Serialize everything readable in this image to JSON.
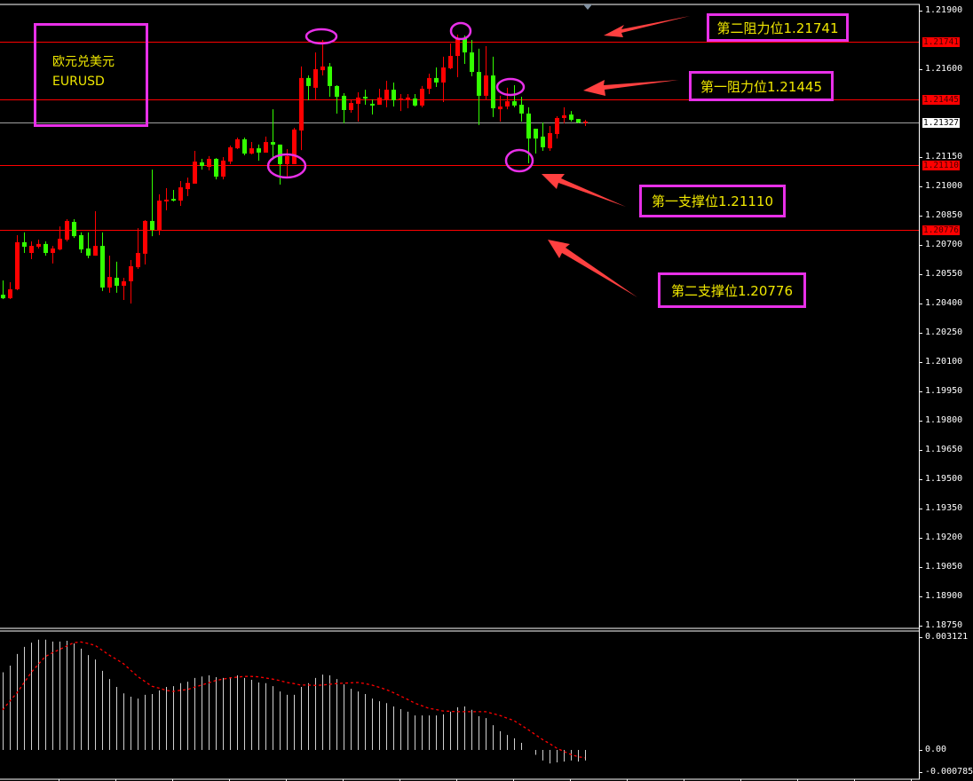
{
  "symbol": {
    "name_cn": "欧元兑美元",
    "name": "EURUSD"
  },
  "annotations": {
    "resistance2": "第二阻力位1.21741",
    "resistance1": "第一阻力位1.21445",
    "support1": "第一支撑位1.21110",
    "support2": "第二支撑位1.20776"
  },
  "colors": {
    "background": "#000000",
    "bull_candle": "#ff0000",
    "bear_candle": "#33ff00",
    "level_line": "#ff0000",
    "bid_line": "#a0a0a0",
    "annotation_box": "#e830e8",
    "annotation_text": "#f0e800",
    "arrow": "#ff4040",
    "macd_hist": "#d0d0d0",
    "macd_signal": "#ff0000"
  },
  "chart_data": [
    {
      "type": "candlestick",
      "title": "",
      "ylim": [
        1.1875,
        1.2195
      ],
      "y_ticks": [
        "1.21900",
        "1.21600",
        "1.21150",
        "1.21000",
        "1.20850",
        "1.20700",
        "1.20550",
        "1.20400",
        "1.20250",
        "1.20100",
        "1.19950",
        "1.19800",
        "1.19650",
        "1.19500",
        "1.19350",
        "1.19200",
        "1.19050",
        "1.18900",
        "1.18750"
      ],
      "grid": false,
      "horizontal_levels": [
        {
          "price": "1.21741",
          "color": "#ff0000"
        },
        {
          "price": "1.21445",
          "color": "#ff0000"
        },
        {
          "price": "1.21327",
          "color": "#a0a0a0",
          "kind": "bid"
        },
        {
          "price": "1.21110",
          "color": "#ff0000"
        },
        {
          "price": "1.20776",
          "color": "#ff0000"
        }
      ],
      "ohlc_fields": [
        "open",
        "high",
        "low",
        "close"
      ],
      "ohlc": [
        [
          1.20445,
          1.20518,
          1.20423,
          1.20427
        ],
        [
          1.20427,
          1.20509,
          1.20423,
          1.20473
        ],
        [
          1.20473,
          1.2075,
          1.20468,
          1.20714
        ],
        [
          1.20714,
          1.20764,
          1.20659,
          1.20691
        ],
        [
          1.20659,
          1.20718,
          1.20627,
          1.20695
        ],
        [
          1.20691,
          1.20727,
          1.20682,
          1.20705
        ],
        [
          1.20705,
          1.20718,
          1.20645,
          1.20659
        ],
        [
          1.20659,
          1.20695,
          1.20605,
          1.20682
        ],
        [
          1.20677,
          1.20795,
          1.20673,
          1.20732
        ],
        [
          1.20727,
          1.20832,
          1.20718,
          1.20823
        ],
        [
          1.20818,
          1.20832,
          1.20736,
          1.20745
        ],
        [
          1.2075,
          1.20764,
          1.20659,
          1.20677
        ],
        [
          1.20682,
          1.20764,
          1.20632,
          1.20645
        ],
        [
          1.20645,
          1.20873,
          1.20645,
          1.20695
        ],
        [
          1.20695,
          1.20764,
          1.20464,
          1.20482
        ],
        [
          1.20482,
          1.20645,
          1.20455,
          1.20536
        ],
        [
          1.20532,
          1.20614,
          1.20455,
          1.20491
        ],
        [
          1.20491,
          1.20532,
          1.20418,
          1.20514
        ],
        [
          1.20514,
          1.20623,
          1.204,
          1.20591
        ],
        [
          1.20586,
          1.20786,
          1.20577,
          1.20659
        ],
        [
          1.20655,
          1.20827,
          1.206,
          1.20823
        ],
        [
          1.20823,
          1.21086,
          1.20745,
          1.20777
        ],
        [
          1.20777,
          1.20959,
          1.2075,
          1.20927
        ],
        [
          1.20923,
          1.20991,
          1.20877,
          1.20932
        ],
        [
          1.20936,
          1.20982,
          1.20923,
          1.20927
        ],
        [
          1.20927,
          1.21027,
          1.209,
          1.20995
        ],
        [
          1.20986,
          1.21045,
          1.2095,
          1.21018
        ],
        [
          1.21014,
          1.21182,
          1.21014,
          1.21127
        ],
        [
          1.21123,
          1.21141,
          1.21086,
          1.21105
        ],
        [
          1.211,
          1.21155,
          1.21082,
          1.21141
        ],
        [
          1.21141,
          1.21145,
          1.21036,
          1.2105
        ],
        [
          1.2105,
          1.2115,
          1.21036,
          1.21132
        ],
        [
          1.21127,
          1.21209,
          1.21114,
          1.212
        ],
        [
          1.21195,
          1.2125,
          1.21191,
          1.21241
        ],
        [
          1.21241,
          1.2125,
          1.21159,
          1.21168
        ],
        [
          1.21168,
          1.21227,
          1.21164,
          1.21195
        ],
        [
          1.21195,
          1.21214,
          1.21132,
          1.21173
        ],
        [
          1.21173,
          1.21255,
          1.21173,
          1.21227
        ],
        [
          1.21227,
          1.21395,
          1.21136,
          1.21214
        ],
        [
          1.21214,
          1.21214,
          1.21009,
          1.21114
        ],
        [
          1.21114,
          1.21191,
          1.21045,
          1.21155
        ],
        [
          1.21114,
          1.213,
          1.21114,
          1.21291
        ],
        [
          1.21286,
          1.21614,
          1.21186,
          1.21555
        ],
        [
          1.21555,
          1.21568,
          1.21441,
          1.21514
        ],
        [
          1.21505,
          1.21686,
          1.21441,
          1.216
        ],
        [
          1.21595,
          1.2175,
          1.21568,
          1.21614
        ],
        [
          1.21614,
          1.21632,
          1.21459,
          1.21514
        ],
        [
          1.21514,
          1.21518,
          1.21373,
          1.21459
        ],
        [
          1.21464,
          1.21477,
          1.21323,
          1.21391
        ],
        [
          1.21391,
          1.21441,
          1.21377,
          1.21427
        ],
        [
          1.21423,
          1.21482,
          1.21332,
          1.21455
        ],
        [
          1.21459,
          1.21495,
          1.21418,
          1.2145
        ],
        [
          1.21423,
          1.21445,
          1.21368,
          1.21414
        ],
        [
          1.21418,
          1.215,
          1.21418,
          1.21455
        ],
        [
          1.21445,
          1.21541,
          1.21405,
          1.21495
        ],
        [
          1.21495,
          1.21532,
          1.21409,
          1.21441
        ],
        [
          1.21441,
          1.21473,
          1.21386,
          1.2145
        ],
        [
          1.21445,
          1.21473,
          1.214,
          1.21455
        ],
        [
          1.2145,
          1.21473,
          1.21409,
          1.21414
        ],
        [
          1.21414,
          1.21514,
          1.21405,
          1.215
        ],
        [
          1.215,
          1.21577,
          1.21473,
          1.21555
        ],
        [
          1.21555,
          1.21609,
          1.21509,
          1.21532
        ],
        [
          1.21532,
          1.21664,
          1.21432,
          1.21609
        ],
        [
          1.21605,
          1.21732,
          1.216,
          1.21668
        ],
        [
          1.21668,
          1.21777,
          1.21559,
          1.21759
        ],
        [
          1.21759,
          1.21773,
          1.21627,
          1.21686
        ],
        [
          1.21686,
          1.2175,
          1.21564,
          1.21586
        ],
        [
          1.21586,
          1.21705,
          1.21314,
          1.21464
        ],
        [
          1.21464,
          1.21718,
          1.21441,
          1.21568
        ],
        [
          1.21568,
          1.21664,
          1.21355,
          1.214
        ],
        [
          1.21395,
          1.21464,
          1.21332,
          1.21409
        ],
        [
          1.21409,
          1.21505,
          1.21395,
          1.21436
        ],
        [
          1.21436,
          1.21518,
          1.21405,
          1.21414
        ],
        [
          1.21418,
          1.21459,
          1.21332,
          1.21373
        ],
        [
          1.21373,
          1.21405,
          1.21118,
          1.21245
        ],
        [
          1.21295,
          1.21295,
          1.21168,
          1.21245
        ],
        [
          1.21255,
          1.21327,
          1.21182,
          1.212
        ],
        [
          1.21195,
          1.21309,
          1.21182,
          1.21273
        ],
        [
          1.21268,
          1.21359,
          1.21245,
          1.2135
        ],
        [
          1.2135,
          1.21405,
          1.21323,
          1.21364
        ],
        [
          1.21368,
          1.21386,
          1.21332,
          1.21341
        ],
        [
          1.21345,
          1.21345,
          1.21323,
          1.21327
        ],
        [
          1.21327,
          1.21341,
          1.21309,
          1.21332
        ]
      ],
      "last_price": "1.21327"
    },
    {
      "type": "bar+line",
      "title": "",
      "ylim": [
        -0.000785,
        0.003121
      ],
      "y_ticks": [
        "0.003121",
        "0.00",
        "-0.000785"
      ],
      "series": [
        {
          "kind": "histogram",
          "values": [
            0.00207,
            0.00225,
            0.00256,
            0.00275,
            0.00286,
            0.00294,
            0.00294,
            0.00289,
            0.00289,
            0.00291,
            0.00284,
            0.0027,
            0.00253,
            0.00241,
            0.00211,
            0.00189,
            0.00168,
            0.00151,
            0.00142,
            0.00137,
            0.00147,
            0.00149,
            0.00159,
            0.00168,
            0.0017,
            0.00178,
            0.00182,
            0.00192,
            0.00196,
            0.00199,
            0.00194,
            0.00192,
            0.00194,
            0.00199,
            0.00192,
            0.00187,
            0.0018,
            0.00178,
            0.0017,
            0.00156,
            0.00147,
            0.00147,
            0.00168,
            0.00178,
            0.00192,
            0.00201,
            0.00199,
            0.00189,
            0.00175,
            0.00163,
            0.00156,
            0.00149,
            0.00137,
            0.0013,
            0.00125,
            0.00116,
            0.00109,
            0.00102,
            0.00092,
            0.00092,
            0.00092,
            0.00092,
            0.00095,
            0.00102,
            0.00114,
            0.00116,
            0.00107,
            0.0009,
            0.00085,
            0.00066,
            0.0005,
            0.0004,
            0.00031,
            0.00019,
            0.0,
            -0.00013,
            -0.00028,
            -0.00036,
            -0.00033,
            -0.00031,
            -0.00028,
            -0.00031,
            -0.00028
          ]
        },
        {
          "kind": "signal-dotted",
          "values": [
            0.00107,
            0.0013,
            0.00152,
            0.00179,
            0.00206,
            0.00228,
            0.00249,
            0.00259,
            0.00268,
            0.00277,
            0.00286,
            0.00288,
            0.00284,
            0.00279,
            0.00266,
            0.00253,
            0.00242,
            0.0023,
            0.00213,
            0.00196,
            0.00183,
            0.0017,
            0.00165,
            0.00159,
            0.00156,
            0.00159,
            0.00161,
            0.00167,
            0.00173,
            0.00179,
            0.00185,
            0.00189,
            0.00192,
            0.00194,
            0.00196,
            0.00196,
            0.00195,
            0.00192,
            0.00189,
            0.00185,
            0.0018,
            0.00177,
            0.00173,
            0.00173,
            0.00172,
            0.00173,
            0.00175,
            0.00177,
            0.00178,
            0.00179,
            0.0018,
            0.00177,
            0.00173,
            0.00167,
            0.00161,
            0.00153,
            0.00144,
            0.00135,
            0.00125,
            0.00118,
            0.00111,
            0.00108,
            0.00104,
            0.00103,
            0.00102,
            0.00102,
            0.00102,
            0.00102,
            0.00102,
            0.00097,
            0.00092,
            0.00085,
            0.00078,
            0.00066,
            0.00054,
            0.00041,
            0.00028,
            0.00017,
            5e-05,
            -4e-05,
            -0.00012,
            -0.00018,
            -0.00021
          ]
        }
      ]
    }
  ]
}
